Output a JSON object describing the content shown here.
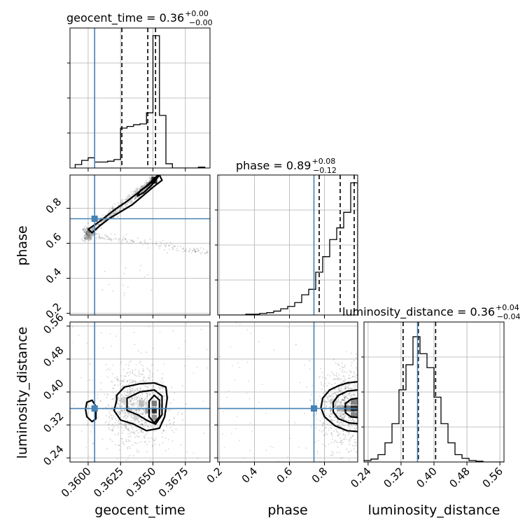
{
  "figure": {
    "type": "corner_plot"
  },
  "chart_data": {
    "type": "heatmap",
    "parameters": [
      {
        "name": "geocent_time",
        "label": "geocent_time",
        "title_main": "geocent_time = 0.36",
        "title_sup": "+0.00",
        "title_sub": "−0.00",
        "range": [
          0.3586,
          0.3694
        ],
        "ticks": [
          0.36,
          0.3625,
          0.365,
          0.3675
        ],
        "tick_labels": [
          "0.3600",
          "0.3625",
          "0.3650",
          "0.3675"
        ],
        "truth": 0.3605,
        "quantiles": [
          0.3626,
          0.3646,
          0.3652
        ],
        "hist_edges": [
          0.359,
          0.3595,
          0.36,
          0.3605,
          0.361,
          0.3615,
          0.362,
          0.3625,
          0.363,
          0.3635,
          0.364,
          0.3645,
          0.365,
          0.3655,
          0.366,
          0.3665,
          0.367,
          0.3675,
          0.368,
          0.3685,
          0.369
        ],
        "hist_counts": [
          4,
          9,
          12,
          7,
          7,
          8,
          10,
          47,
          49,
          51,
          52,
          65,
          156,
          62,
          5,
          0,
          0,
          0,
          0,
          1
        ],
        "hist_max": 165
      },
      {
        "name": "phase",
        "label": "phase",
        "title_main": "phase = 0.89",
        "title_sup": "+0.08",
        "title_sub": "−0.12",
        "range": [
          0.19,
          0.99
        ],
        "ticks": [
          0.2,
          0.4,
          0.6,
          0.8
        ],
        "tick_labels": [
          "0.2",
          "0.4",
          "0.6",
          "0.8"
        ],
        "truth": 0.74,
        "quantiles": [
          0.77,
          0.89,
          0.97
        ],
        "hist_edges": [
          0.19,
          0.23,
          0.27,
          0.31,
          0.35,
          0.39,
          0.43,
          0.47,
          0.51,
          0.55,
          0.59,
          0.63,
          0.67,
          0.71,
          0.75,
          0.79,
          0.83,
          0.87,
          0.91,
          0.95,
          0.99
        ],
        "hist_counts": [
          0,
          0,
          0,
          0,
          1,
          1,
          2,
          3,
          5,
          8,
          11,
          16,
          26,
          33,
          55,
          75,
          97,
          112,
          132,
          170
        ],
        "hist_max": 180
      },
      {
        "name": "luminosity_distance",
        "label": "luminosity_distance",
        "title_main": "luminosity_distance = 0.36",
        "title_sup": "+0.04",
        "title_sub": "−0.04",
        "range": [
          0.23,
          0.57
        ],
        "ticks": [
          0.24,
          0.32,
          0.4,
          0.48,
          0.56
        ],
        "tick_labels": [
          "0.24",
          "0.32",
          "0.40",
          "0.48",
          "0.56"
        ],
        "truth": 0.36,
        "quantiles": [
          0.325,
          0.362,
          0.404
        ],
        "hist_edges": [
          0.23,
          0.247,
          0.264,
          0.281,
          0.298,
          0.315,
          0.332,
          0.349,
          0.366,
          0.383,
          0.4,
          0.417,
          0.434,
          0.451,
          0.468,
          0.485,
          0.502,
          0.519,
          0.536,
          0.553,
          0.57
        ],
        "hist_counts": [
          2,
          4,
          10,
          26,
          52,
          98,
          132,
          170,
          147,
          128,
          88,
          52,
          26,
          10,
          5,
          2,
          1,
          0,
          0,
          0
        ],
        "hist_max": 190
      }
    ],
    "pairs": [
      {
        "x": "geocent_time",
        "y": "phase",
        "density_cells": [
          {
            "x": 0.3651,
            "y": 0.96,
            "w": 0.00045,
            "h": 0.04,
            "v": 0.95
          },
          {
            "x": 0.3647,
            "y": 0.93,
            "w": 0.00045,
            "h": 0.04,
            "v": 0.45
          },
          {
            "x": 0.3643,
            "y": 0.91,
            "w": 0.00045,
            "h": 0.04,
            "v": 0.35
          },
          {
            "x": 0.3638,
            "y": 0.88,
            "w": 0.00045,
            "h": 0.04,
            "v": 0.25
          },
          {
            "x": 0.3632,
            "y": 0.85,
            "w": 0.00045,
            "h": 0.04,
            "v": 0.15
          },
          {
            "x": 0.3603,
            "y": 0.66,
            "w": 0.0004,
            "h": 0.03,
            "v": 0.35
          }
        ],
        "contours": [
          [
            [
              0.3602,
              0.69
            ],
            [
              0.3608,
              0.72
            ],
            [
              0.3615,
              0.76
            ],
            [
              0.3622,
              0.8
            ],
            [
              0.363,
              0.84
            ],
            [
              0.3637,
              0.88
            ],
            [
              0.3644,
              0.92
            ],
            [
              0.365,
              0.96
            ],
            [
              0.3655,
              0.99
            ],
            [
              0.3657,
              0.96
            ],
            [
              0.365,
              0.92
            ],
            [
              0.3642,
              0.87
            ],
            [
              0.3634,
              0.82
            ],
            [
              0.3625,
              0.78
            ],
            [
              0.3616,
              0.74
            ],
            [
              0.3609,
              0.7
            ],
            [
              0.3603,
              0.66
            ],
            [
              0.36,
              0.68
            ]
          ],
          [
            [
              0.364,
              0.9
            ],
            [
              0.3646,
              0.93
            ],
            [
              0.3652,
              0.97
            ],
            [
              0.3655,
              0.99
            ],
            [
              0.365,
              0.94
            ],
            [
              0.3643,
              0.89
            ],
            [
              0.3638,
              0.87
            ]
          ],
          [
            [
              0.3647,
              0.94
            ],
            [
              0.3651,
              0.97
            ],
            [
              0.3654,
              0.99
            ],
            [
              0.3651,
              0.95
            ]
          ]
        ],
        "scatter": "diagonal_tail",
        "truth": {
          "x": 0.3605,
          "y": 0.74
        }
      },
      {
        "x": "geocent_time",
        "y": "luminosity_distance",
        "density_cells": [
          {
            "x": 0.3651,
            "y": 0.355,
            "w": 0.0004,
            "h": 0.014,
            "v": 0.95
          },
          {
            "x": 0.3651,
            "y": 0.372,
            "w": 0.0004,
            "h": 0.014,
            "v": 0.6
          },
          {
            "x": 0.3651,
            "y": 0.338,
            "w": 0.0004,
            "h": 0.014,
            "v": 0.5
          },
          {
            "x": 0.3646,
            "y": 0.355,
            "w": 0.0004,
            "h": 0.014,
            "v": 0.45
          },
          {
            "x": 0.3641,
            "y": 0.372,
            "w": 0.0004,
            "h": 0.014,
            "v": 0.3
          },
          {
            "x": 0.3632,
            "y": 0.355,
            "w": 0.0004,
            "h": 0.014,
            "v": 0.25
          },
          {
            "x": 0.3627,
            "y": 0.38,
            "w": 0.0004,
            "h": 0.014,
            "v": 0.2
          },
          {
            "x": 0.3637,
            "y": 0.338,
            "w": 0.0004,
            "h": 0.014,
            "v": 0.2
          }
        ],
        "contours": [
          [
            [
              0.3622,
              0.392
            ],
            [
              0.3628,
              0.412
            ],
            [
              0.364,
              0.42
            ],
            [
              0.3651,
              0.422
            ],
            [
              0.366,
              0.412
            ],
            [
              0.3661,
              0.385
            ],
            [
              0.3659,
              0.34
            ],
            [
              0.3655,
              0.312
            ],
            [
              0.3645,
              0.306
            ],
            [
              0.3635,
              0.322
            ],
            [
              0.3625,
              0.332
            ],
            [
              0.362,
              0.355
            ],
            [
              0.3622,
              0.38
            ]
          ],
          [
            [
              0.363,
              0.385
            ],
            [
              0.364,
              0.4
            ],
            [
              0.3651,
              0.405
            ],
            [
              0.3657,
              0.39
            ],
            [
              0.3657,
              0.345
            ],
            [
              0.3652,
              0.322
            ],
            [
              0.3646,
              0.33
            ],
            [
              0.3638,
              0.345
            ],
            [
              0.363,
              0.355
            ]
          ],
          [
            [
              0.3647,
              0.378
            ],
            [
              0.3651,
              0.392
            ],
            [
              0.3655,
              0.38
            ],
            [
              0.3655,
              0.34
            ],
            [
              0.3651,
              0.325
            ],
            [
              0.3647,
              0.34
            ]
          ],
          [
            [
              0.3599,
              0.375
            ],
            [
              0.3603,
              0.38
            ],
            [
              0.3606,
              0.365
            ],
            [
              0.3606,
              0.335
            ],
            [
              0.3603,
              0.328
            ],
            [
              0.3599,
              0.34
            ],
            [
              0.3598,
              0.358
            ]
          ]
        ],
        "scatter": "cloud",
        "truth": {
          "x": 0.3605,
          "y": 0.36
        }
      },
      {
        "x": "phase",
        "y": "luminosity_distance",
        "density_cells": [
          {
            "x": 0.97,
            "y": 0.36,
            "w": 0.04,
            "h": 0.014,
            "v": 0.95
          },
          {
            "x": 0.93,
            "y": 0.36,
            "w": 0.04,
            "h": 0.014,
            "v": 0.6
          },
          {
            "x": 0.97,
            "y": 0.376,
            "w": 0.04,
            "h": 0.014,
            "v": 0.55
          },
          {
            "x": 0.97,
            "y": 0.344,
            "w": 0.04,
            "h": 0.014,
            "v": 0.55
          },
          {
            "x": 0.89,
            "y": 0.36,
            "w": 0.04,
            "h": 0.014,
            "v": 0.35
          },
          {
            "x": 0.85,
            "y": 0.376,
            "w": 0.04,
            "h": 0.014,
            "v": 0.2
          }
        ],
        "contours": [
          [
            [
              0.99,
              0.425
            ],
            [
              0.93,
              0.422
            ],
            [
              0.88,
              0.415
            ],
            [
              0.83,
              0.405
            ],
            [
              0.79,
              0.385
            ],
            [
              0.78,
              0.362
            ],
            [
              0.8,
              0.34
            ],
            [
              0.86,
              0.318
            ],
            [
              0.93,
              0.306
            ],
            [
              0.99,
              0.304
            ]
          ],
          [
            [
              0.99,
              0.405
            ],
            [
              0.93,
              0.402
            ],
            [
              0.88,
              0.392
            ],
            [
              0.85,
              0.375
            ],
            [
              0.85,
              0.352
            ],
            [
              0.88,
              0.335
            ],
            [
              0.94,
              0.325
            ],
            [
              0.99,
              0.323
            ]
          ],
          [
            [
              0.99,
              0.385
            ],
            [
              0.95,
              0.382
            ],
            [
              0.92,
              0.372
            ],
            [
              0.92,
              0.35
            ],
            [
              0.95,
              0.34
            ],
            [
              0.99,
              0.338
            ]
          ]
        ],
        "scatter": "cloud",
        "truth": {
          "x": 0.74,
          "y": 0.36
        }
      }
    ],
    "truth_color": "#4682b4",
    "grid": true
  }
}
